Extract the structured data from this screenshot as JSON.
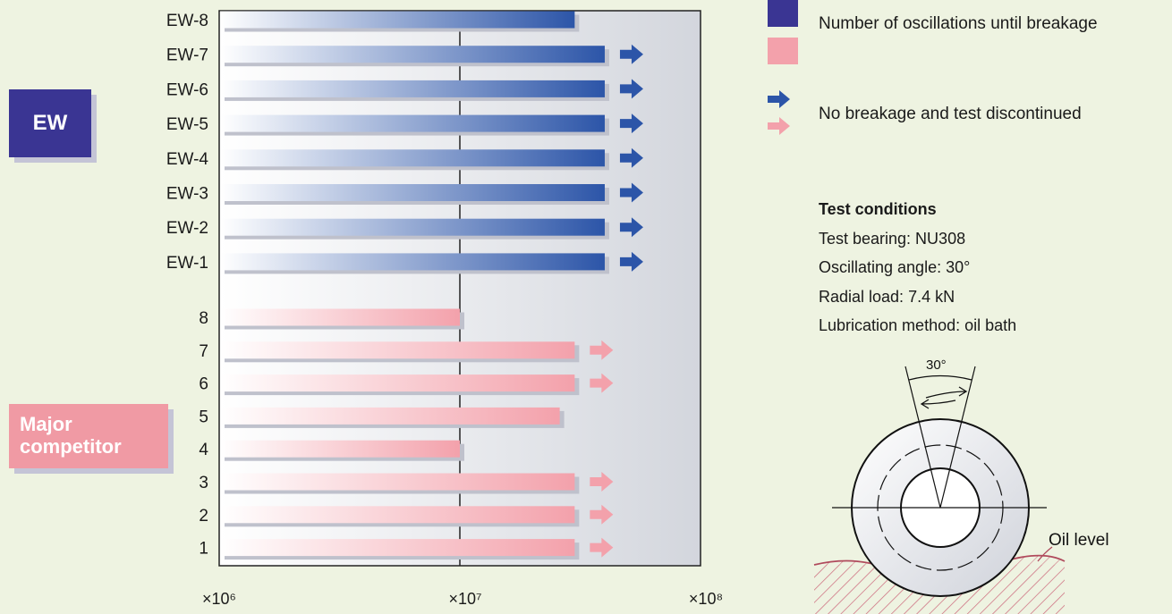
{
  "groups": {
    "ew_label": "EW",
    "competitor_label": "Major competitor"
  },
  "colors": {
    "ew_bar": "#2c55a8",
    "competitor_bar": "#f3a1ab",
    "ew_label_bg": "#3a3593",
    "competitor_label_bg": "#f09aa4",
    "background": "#eef3e1"
  },
  "legend": {
    "breakage_label": "Number of oscillations until breakage",
    "no_breakage_label": "No breakage and test discontinued"
  },
  "conditions": {
    "title": "Test conditions",
    "lines": [
      "Test bearing: NU308",
      "Oscillating angle: 30°",
      "Radial load: 7.4 kN",
      "Lubrication method: oil bath"
    ]
  },
  "diagram": {
    "angle_label": "30°",
    "oil_level_label": "Oil level"
  },
  "chart_data": {
    "type": "bar",
    "orientation": "horizontal",
    "x_scale": "log",
    "xlim": [
      1000000,
      100000000
    ],
    "x_tick_labels": [
      "×10⁶",
      "×10⁷",
      "×10⁸"
    ],
    "x_tick_values": [
      1000000,
      10000000,
      100000000
    ],
    "series": [
      {
        "group": "EW",
        "categories": [
          "EW-8",
          "EW-7",
          "EW-6",
          "EW-5",
          "EW-4",
          "EW-3",
          "EW-2",
          "EW-1"
        ],
        "values": [
          30000000,
          40000000,
          40000000,
          40000000,
          40000000,
          40000000,
          40000000,
          40000000
        ],
        "discontinued": [
          false,
          true,
          true,
          true,
          true,
          true,
          true,
          true
        ]
      },
      {
        "group": "Major competitor",
        "categories": [
          "8",
          "7",
          "6",
          "5",
          "4",
          "3",
          "2",
          "1"
        ],
        "values": [
          10000000,
          30000000,
          30000000,
          26000000,
          10000000,
          30000000,
          30000000,
          30000000
        ],
        "discontinued": [
          false,
          true,
          true,
          false,
          false,
          true,
          true,
          true
        ]
      }
    ]
  }
}
